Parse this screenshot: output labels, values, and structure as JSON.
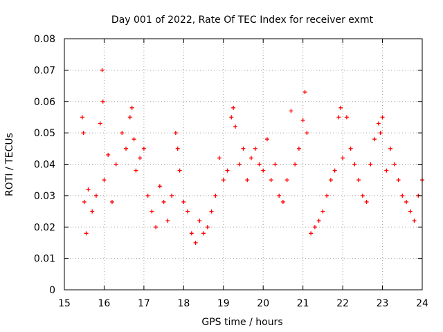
{
  "chart_data": {
    "type": "scatter",
    "title": "Day 001 of 2022, Rate Of TEC Index for receiver exmt",
    "xlabel": "GPS time / hours",
    "ylabel": "ROTI / TECUs",
    "xlim": [
      15,
      24
    ],
    "ylim": [
      0,
      0.08
    ],
    "x_ticks": [
      "15",
      "16",
      "17",
      "18",
      "19",
      "20",
      "21",
      "22",
      "23",
      "24"
    ],
    "y_ticks": [
      "0",
      "0.01",
      "0.02",
      "0.03",
      "0.04",
      "0.05",
      "0.06",
      "0.07",
      "0.08"
    ],
    "grid": true,
    "marker": "+",
    "colors": {
      "points": "#ff0000",
      "grid": "#a0a0a0",
      "axes": "#000000"
    },
    "series": [
      {
        "name": "ROTI",
        "x": [
          15.45,
          15.48,
          15.5,
          15.55,
          15.6,
          15.7,
          15.8,
          15.9,
          15.95,
          15.97,
          16.0,
          16.1,
          16.2,
          16.3,
          16.45,
          16.55,
          16.65,
          16.7,
          16.75,
          16.8,
          16.9,
          17.0,
          17.1,
          17.2,
          17.3,
          17.4,
          17.5,
          17.6,
          17.7,
          17.8,
          17.85,
          17.9,
          18.0,
          18.1,
          18.2,
          18.3,
          18.4,
          18.5,
          18.6,
          18.7,
          18.8,
          18.9,
          19.0,
          19.1,
          19.2,
          19.25,
          19.3,
          19.4,
          19.5,
          19.6,
          19.7,
          19.8,
          19.9,
          20.0,
          20.1,
          20.2,
          20.3,
          20.4,
          20.5,
          20.6,
          20.7,
          20.8,
          20.9,
          21.0,
          21.05,
          21.1,
          21.2,
          21.3,
          21.4,
          21.5,
          21.6,
          21.7,
          21.8,
          21.9,
          21.95,
          22.0,
          22.1,
          22.2,
          22.3,
          22.4,
          22.5,
          22.6,
          22.7,
          22.8,
          22.9,
          22.95,
          23.0,
          23.1,
          23.2,
          23.3,
          23.4,
          23.5,
          23.6,
          23.7,
          23.8,
          23.9,
          24.0
        ],
        "y": [
          0.055,
          0.05,
          0.028,
          0.018,
          0.032,
          0.025,
          0.03,
          0.053,
          0.07,
          0.06,
          0.035,
          0.043,
          0.028,
          0.04,
          0.05,
          0.045,
          0.055,
          0.058,
          0.048,
          0.038,
          0.042,
          0.045,
          0.03,
          0.025,
          0.02,
          0.033,
          0.028,
          0.022,
          0.03,
          0.05,
          0.045,
          0.038,
          0.028,
          0.025,
          0.018,
          0.015,
          0.022,
          0.018,
          0.02,
          0.025,
          0.03,
          0.042,
          0.035,
          0.038,
          0.055,
          0.058,
          0.052,
          0.04,
          0.045,
          0.035,
          0.042,
          0.045,
          0.04,
          0.038,
          0.048,
          0.035,
          0.04,
          0.03,
          0.028,
          0.035,
          0.057,
          0.04,
          0.045,
          0.054,
          0.063,
          0.05,
          0.018,
          0.02,
          0.022,
          0.025,
          0.03,
          0.035,
          0.038,
          0.055,
          0.058,
          0.042,
          0.055,
          0.045,
          0.04,
          0.035,
          0.03,
          0.028,
          0.04,
          0.048,
          0.053,
          0.05,
          0.055,
          0.038,
          0.045,
          0.04,
          0.035,
          0.03,
          0.028,
          0.025,
          0.022,
          0.03,
          0.035
        ]
      }
    ]
  }
}
